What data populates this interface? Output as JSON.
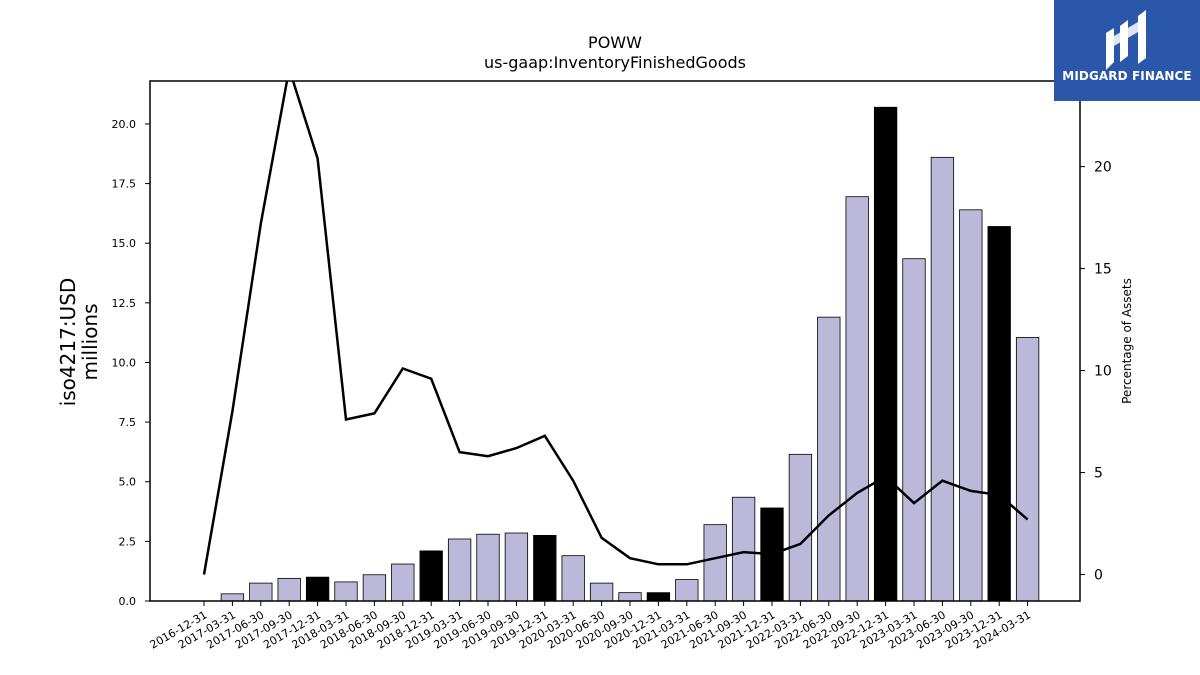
{
  "logo": {
    "brand": "MIDGARD FINANCE",
    "icon": "midgard-m-logo-icon",
    "background": "#2b57ab"
  },
  "chart_data": {
    "type": "bar",
    "title": "POWW",
    "subtitle": "us-gaap:InventoryFinishedGoods",
    "ylabel": "iso4217:USD\nmillions",
    "y2label": "Percentage of Assets",
    "ylim": [
      0,
      21.8
    ],
    "y2lim": [
      -1.3,
      24.2
    ],
    "yticks": [
      "0.0",
      "2.5",
      "5.0",
      "7.5",
      "10.0",
      "12.5",
      "15.0",
      "17.5",
      "20.0"
    ],
    "y2ticks": [
      "0",
      "5",
      "10",
      "15",
      "20"
    ],
    "categories": [
      "2016-12-31",
      "2017-03-31",
      "2017-06-30",
      "2017-09-30",
      "2017-12-31",
      "2018-03-31",
      "2018-06-30",
      "2018-09-30",
      "2018-12-31",
      "2019-03-31",
      "2019-06-30",
      "2019-09-30",
      "2019-12-31",
      "2020-03-31",
      "2020-06-30",
      "2020-09-30",
      "2020-12-31",
      "2021-03-31",
      "2021-06-30",
      "2021-09-30",
      "2021-12-31",
      "2022-03-31",
      "2022-06-30",
      "2022-09-30",
      "2022-12-31",
      "2023-03-31",
      "2023-06-30",
      "2023-09-30",
      "2023-12-31",
      "2024-03-31"
    ],
    "series": [
      {
        "values": [
          0,
          0.3,
          0.75,
          0.95,
          1.0,
          0.8,
          1.1,
          1.55,
          2.1,
          2.6,
          2.8,
          2.85,
          2.75,
          1.9,
          0.75,
          0.35,
          0.35,
          0.9,
          3.2,
          4.35,
          3.9,
          6.15,
          11.9,
          16.95,
          20.7,
          14.35,
          18.6,
          16.4,
          15.7,
          11.05
        ],
        "highlight": [
          false,
          false,
          false,
          false,
          true,
          false,
          false,
          false,
          true,
          false,
          false,
          false,
          true,
          false,
          false,
          false,
          true,
          false,
          false,
          false,
          true,
          false,
          false,
          false,
          true,
          false,
          false,
          false,
          true,
          false
        ],
        "color": "#bcb8d9",
        "highlight_color": "#000000"
      },
      {
        "type": "line",
        "axis": "right",
        "values": [
          0,
          8.0,
          17.2,
          24.8,
          20.4,
          7.6,
          7.9,
          10.1,
          9.6,
          6.0,
          5.8,
          6.2,
          6.8,
          4.6,
          1.8,
          0.8,
          0.5,
          0.5,
          0.8,
          1.1,
          1.0,
          1.5,
          2.9,
          4.0,
          4.8,
          3.5,
          4.6,
          4.1,
          3.9,
          2.7
        ],
        "color": "#000000"
      }
    ]
  }
}
